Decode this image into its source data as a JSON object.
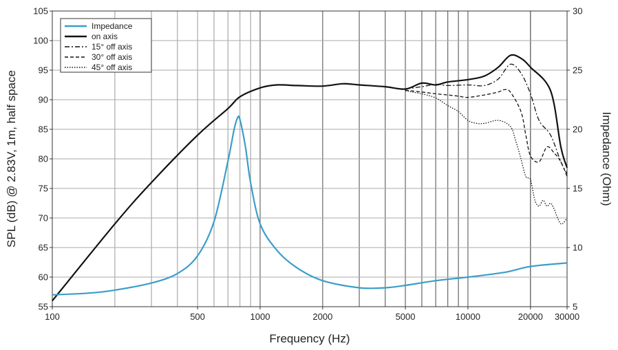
{
  "chart_data": {
    "type": "line",
    "title": "",
    "xlabel": "Frequency (Hz)",
    "ylabel": "SPL (dB) @ 2.83V, 1m, half space",
    "y2label": "Impedance (Ohm)",
    "x_scale": "log",
    "xlim": [
      100,
      30000
    ],
    "ylim": [
      55,
      105
    ],
    "y2lim": [
      5,
      30
    ],
    "grid": true,
    "legend_position": "top-left",
    "x_ticks": [
      100,
      500,
      1000,
      2000,
      5000,
      10000,
      20000,
      30000
    ],
    "x_tick_labels": [
      "100",
      "500",
      "1000",
      "2000",
      "5000",
      "10000",
      "20000",
      "30000"
    ],
    "y_ticks": [
      55,
      60,
      65,
      70,
      75,
      80,
      85,
      90,
      95,
      100,
      105
    ],
    "y_tick_labels": [
      "55",
      "60",
      "65",
      "70",
      "75",
      "80",
      "85",
      "90",
      "95",
      "100",
      "105"
    ],
    "y2_ticks": [
      5,
      10,
      15,
      20,
      25,
      30
    ],
    "y2_tick_labels": [
      "5",
      "10",
      "15",
      "20",
      "25",
      "30"
    ],
    "series": [
      {
        "name": "Impedance",
        "axis": "right",
        "color": "#3a9ec8",
        "style": "solid",
        "x": [
          100,
          150,
          200,
          300,
          400,
          500,
          600,
          700,
          750,
          780,
          800,
          850,
          900,
          1000,
          1200,
          1500,
          2000,
          3000,
          4000,
          5000,
          7000,
          10000,
          15000,
          20000,
          30000
        ],
        "y": [
          6.0,
          6.15,
          6.4,
          7.0,
          7.8,
          9.3,
          12.2,
          17.3,
          20.0,
          21.0,
          20.8,
          18.5,
          15.5,
          12.0,
          9.8,
          8.3,
          7.2,
          6.6,
          6.6,
          6.8,
          7.2,
          7.5,
          7.9,
          8.4,
          8.7
        ]
      },
      {
        "name": "on axis",
        "axis": "left",
        "color": "#111111",
        "style": "solid",
        "x": [
          100,
          200,
          300,
          500,
          700,
          800,
          1000,
          1200,
          1500,
          2000,
          2500,
          3000,
          4000,
          5000,
          6000,
          7000,
          8000,
          10000,
          12000,
          14000,
          16000,
          18000,
          20000,
          25000,
          28000,
          30000
        ],
        "y": [
          56,
          69,
          76,
          84,
          88.5,
          90.5,
          92,
          92.5,
          92.4,
          92.3,
          92.7,
          92.5,
          92.2,
          91.8,
          92.8,
          92.5,
          93.0,
          93.4,
          94.0,
          95.5,
          97.5,
          97.0,
          95.5,
          91.5,
          82.0,
          78.5
        ]
      },
      {
        "name": "15° off axis",
        "axis": "left",
        "color": "#111111",
        "style": "dashdot",
        "x": [
          5000,
          6000,
          7000,
          8000,
          10000,
          12000,
          14000,
          16000,
          18000,
          20000,
          22000,
          25000,
          28000,
          30000
        ],
        "y": [
          91.8,
          92.2,
          92.6,
          92.4,
          92.5,
          92.4,
          93.5,
          96.0,
          94.5,
          91.0,
          86.5,
          84.0,
          79.5,
          77.5
        ]
      },
      {
        "name": "30° off axis",
        "axis": "left",
        "color": "#111111",
        "style": "dashed",
        "x": [
          5000,
          6000,
          7000,
          8000,
          9000,
          10000,
          12000,
          14000,
          15000,
          16000,
          18000,
          19000,
          20000,
          22000,
          24000,
          26000,
          28000,
          30000
        ],
        "y": [
          91.6,
          91.3,
          91.0,
          90.8,
          90.6,
          90.4,
          90.8,
          91.3,
          91.7,
          91.3,
          88.0,
          84.0,
          80.5,
          79.5,
          82.0,
          81.0,
          79.5,
          77.0
        ]
      },
      {
        "name": "45° off axis",
        "axis": "left",
        "color": "#111111",
        "style": "dotted",
        "x": [
          5000,
          6000,
          7000,
          8000,
          9000,
          10000,
          11000,
          12000,
          14000,
          16000,
          17000,
          18000,
          19000,
          20000,
          21000,
          22000,
          23000,
          24000,
          25000,
          26000,
          28000,
          30000
        ],
        "y": [
          91.5,
          91.0,
          90.3,
          89.0,
          88.0,
          86.5,
          86.0,
          86.0,
          86.5,
          85.5,
          83.0,
          80.0,
          77.0,
          76.5,
          73.0,
          72.0,
          73.0,
          72.0,
          72.5,
          71.5,
          69.0,
          70.0
        ]
      }
    ]
  }
}
